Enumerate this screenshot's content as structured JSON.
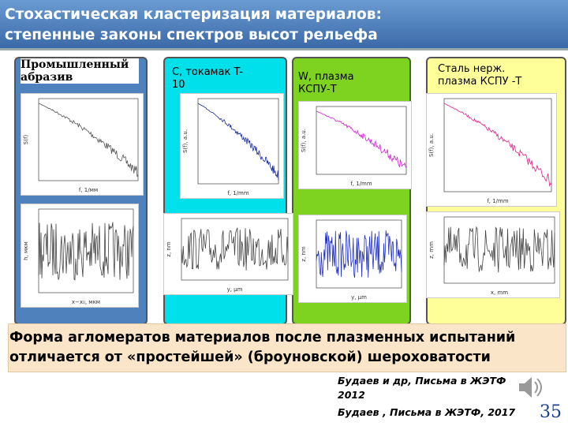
{
  "header": {
    "title_lines": [
      "Стохастическая кластеризация материалов:",
      "степенные законы спектров высот рельефа"
    ]
  },
  "panels": [
    {
      "label": "Промышленный абразив",
      "spectrum_x_label": "f, 1/мм",
      "spectrum_y_label": "S(f)",
      "profile_x_label": "x−x₀, мкм",
      "profile_y_label": "h, мкм"
    },
    {
      "label": "C, токамак T-10",
      "spectrum_x_label": "f, 1/mm",
      "spectrum_y_label": "S(f), a.u.",
      "profile_x_label": "y, μm",
      "profile_y_label": "z, nm"
    },
    {
      "label": "W, плазма КСПУ-Т",
      "spectrum_x_label": "f, 1/mm",
      "spectrum_y_label": "S(f), a.u.",
      "profile_x_label": "y, μm",
      "profile_y_label": "z, nm"
    },
    {
      "label": "Сталь нерж. плазма КСПУ -Т",
      "spectrum_x_label": "f, 1/mm",
      "spectrum_y_label": "S(f), a.u.",
      "profile_x_label": "x, mm",
      "profile_y_label": "z, mm"
    }
  ],
  "conclusion": "Форма агломератов материалов после плазменных испытаний отличается от «простейшей» (броуновской) шероховатости",
  "references": [
    "Будаев и др, Письма в ЖЭТФ 2012",
    "Будаев , Письма в ЖЭТФ, 2017"
  ],
  "page_number": "35"
}
